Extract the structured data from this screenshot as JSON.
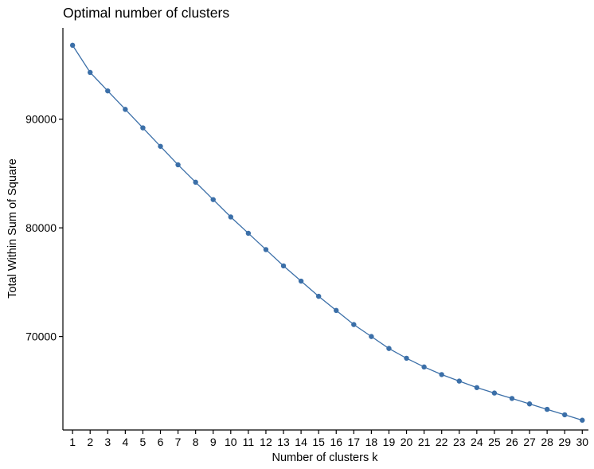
{
  "chart_data": {
    "type": "line",
    "title": "Optimal number of clusters",
    "xlabel": "Number of clusters k",
    "ylabel": "Total Within Sum of Square",
    "x": [
      1,
      2,
      3,
      4,
      5,
      6,
      7,
      8,
      9,
      10,
      11,
      12,
      13,
      14,
      15,
      16,
      17,
      18,
      19,
      20,
      21,
      22,
      23,
      24,
      25,
      26,
      27,
      28,
      29,
      30
    ],
    "series": [
      {
        "values": [
          96800,
          94300,
          92600,
          90900,
          89200,
          87500,
          85800,
          84200,
          82600,
          81000,
          79500,
          78000,
          76500,
          75100,
          73700,
          72400,
          71100,
          70000,
          68900,
          68000,
          67200,
          66500,
          65900,
          65300,
          64800,
          64300,
          63800,
          63300,
          62800,
          62300
        ],
        "color": "#3b6fa8"
      }
    ],
    "xticks": [
      "1",
      "2",
      "3",
      "4",
      "5",
      "6",
      "7",
      "8",
      "9",
      "10",
      "11",
      "12",
      "13",
      "14",
      "15",
      "16",
      "17",
      "18",
      "19",
      "20",
      "21",
      "22",
      "23",
      "24",
      "25",
      "26",
      "27",
      "28",
      "29",
      "30"
    ],
    "yticks": [
      70000,
      80000,
      90000
    ],
    "ytick_labels": [
      "70000",
      "80000",
      "90000"
    ],
    "xlim": [
      0.45,
      30.35
    ],
    "ylim": [
      61400,
      98400
    ],
    "grid": false,
    "legend": "none"
  }
}
